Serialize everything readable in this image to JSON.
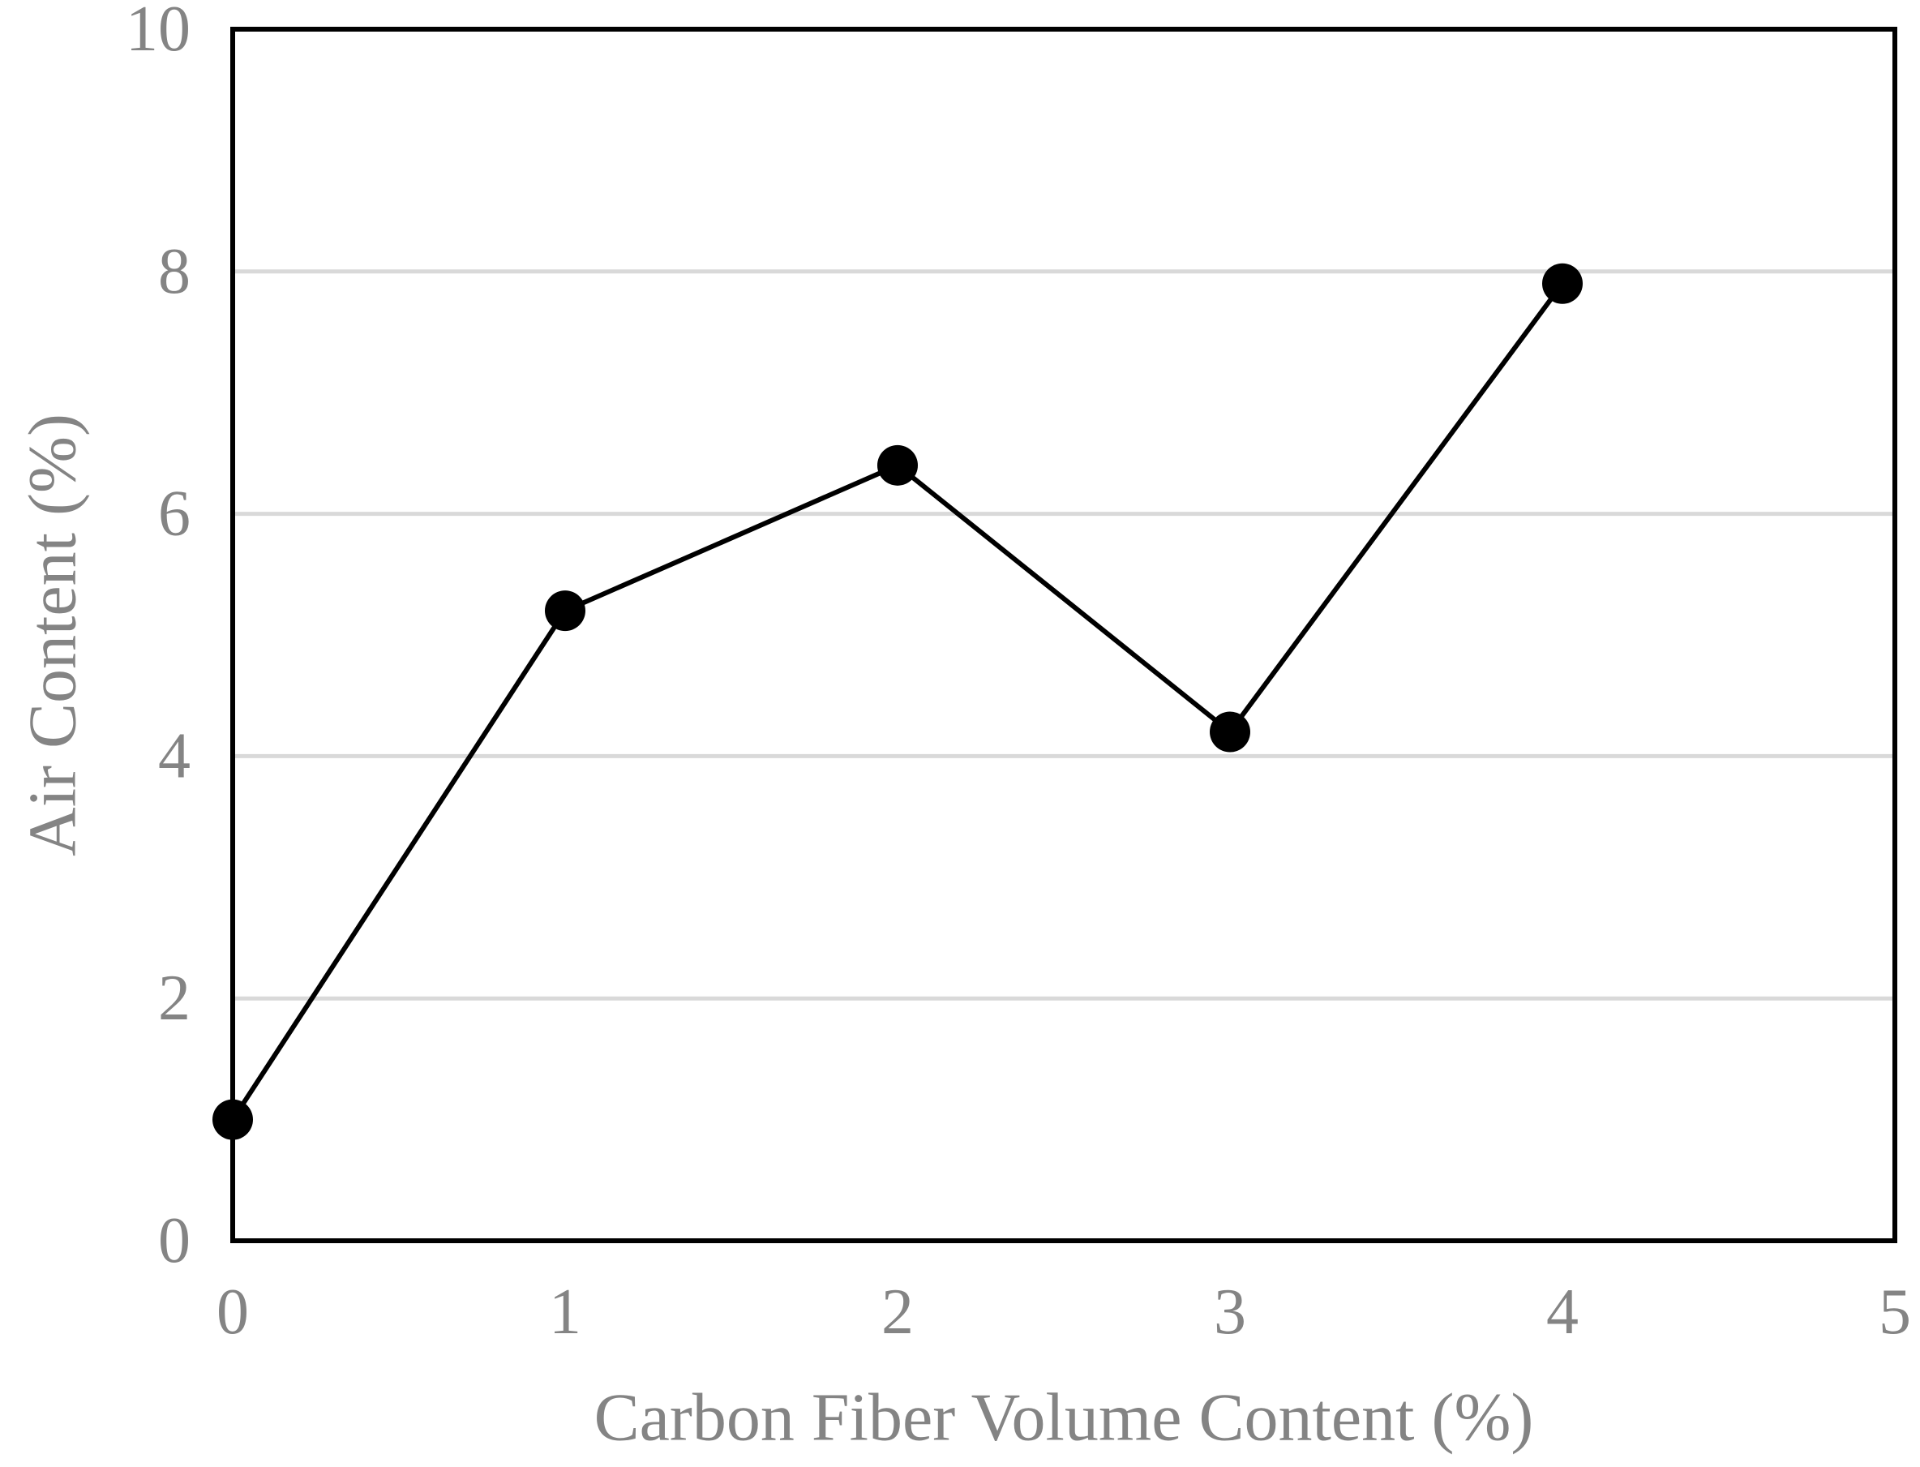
{
  "chart_data": {
    "type": "line",
    "title": "",
    "xlabel": "Carbon Fiber Volume Content (%)",
    "ylabel": "Air Content (%)",
    "x": [
      0,
      1,
      2,
      3,
      4
    ],
    "y": [
      1.0,
      5.2,
      6.4,
      4.2,
      7.9
    ],
    "series": [
      {
        "name": "Air Content",
        "x": [
          0,
          1,
          2,
          3,
          4
        ],
        "values": [
          1.0,
          5.2,
          6.4,
          4.2,
          7.9
        ]
      }
    ],
    "xlim": [
      0,
      5
    ],
    "ylim": [
      0,
      10
    ],
    "xticks": [
      0,
      1,
      2,
      3,
      4,
      5
    ],
    "yticks": [
      0,
      2,
      4,
      6,
      8,
      10
    ],
    "grid": "horizontal-only",
    "legend_position": "none",
    "marker": "filled-circle",
    "colors": {
      "series_line": "#000000",
      "marker_fill": "#000000",
      "gridline": "#d9d9d9",
      "plot_border": "#000000",
      "tick_label": "#848484",
      "axis_title": "#848484",
      "background": "#ffffff"
    }
  }
}
